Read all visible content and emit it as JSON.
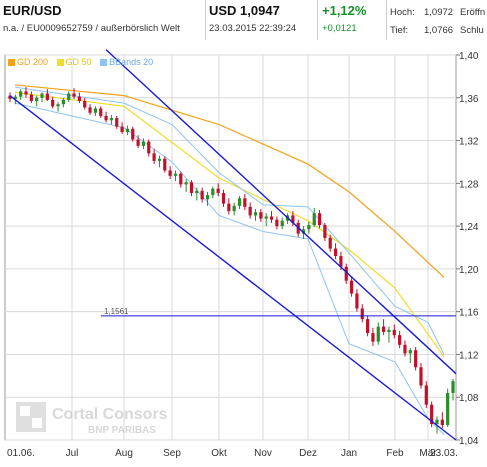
{
  "header": {
    "symbol": "EUR/USD",
    "subtitle": "n.a. / EU0009652759 / außerbörslich Welt",
    "price": "USD 1,0947",
    "timestamp": "23.03.2015 22:39:24",
    "change_pct": "+1,12%",
    "change_abs": "+0,0121",
    "high_label": "Hoch:",
    "high_value": "1,0972",
    "low_label": "Tief:",
    "low_value": "1,0766",
    "open_label_cut": "Eröffn",
    "close_label_cut": "Schlu"
  },
  "legend": [
    {
      "label": "GD 200",
      "color": "#f2a21c"
    },
    {
      "label": "GD 50",
      "color": "#f0dc2a"
    },
    {
      "label": "BBands 20",
      "color": "#8fc4f0"
    }
  ],
  "watermark": {
    "name": "Cortal Consors",
    "sub": "BNP PARIBAS"
  },
  "colors": {
    "channel": "#1a1ad6",
    "up_candle": "#2a8c2a",
    "down_candle": "#c0102a",
    "gd200": "#f2a21c",
    "gd50": "#f0dc2a",
    "bbands": "#8fc4f0",
    "grid": "#d9d9d9"
  },
  "chart_data": {
    "type": "candlestick",
    "y_ticks": [
      "1,40",
      "1,36",
      "1,32",
      "1,28",
      "1,24",
      "1,20",
      "1,16",
      "1,12",
      "1,08",
      "1,04"
    ],
    "ylim": [
      1.04,
      1.4
    ],
    "x_ticks": [
      "01.06.",
      "Jul",
      "Aug",
      "Sep",
      "Okt",
      "Nov",
      "Dez",
      "Jan",
      "Feb",
      "Mär",
      "23.03."
    ],
    "level_line": {
      "label": "1,1561",
      "value": 1.1561
    },
    "channel": {
      "upper": [
        {
          "x": "Jul",
          "y": 1.405
        },
        {
          "x": "23.03.",
          "y": 1.102
        }
      ],
      "lower": [
        {
          "x": "01.06.",
          "y": 1.362
        },
        {
          "x": "23.03.",
          "y": 1.04
        }
      ]
    },
    "series": [
      {
        "name": "GD 200",
        "points": [
          [
            "01.06.",
            1.372
          ],
          [
            "Aug",
            1.362
          ],
          [
            "Okt",
            1.335
          ],
          [
            "Dez",
            1.298
          ],
          [
            "Jan",
            1.272
          ],
          [
            "Feb",
            1.235
          ],
          [
            "23.03.",
            1.192
          ]
        ]
      },
      {
        "name": "GD 50",
        "points": [
          [
            "01.06.",
            1.365
          ],
          [
            "Aug",
            1.352
          ],
          [
            "Okt",
            1.285
          ],
          [
            "Nov",
            1.265
          ],
          [
            "Dez",
            1.245
          ],
          [
            "Jan",
            1.218
          ],
          [
            "Feb",
            1.182
          ],
          [
            "23.03.",
            1.118
          ]
        ]
      },
      {
        "name": "BBands 20",
        "upper": [
          [
            "01.06.",
            1.37
          ],
          [
            "Aug",
            1.355
          ],
          [
            "Sep",
            1.335
          ],
          [
            "Okt",
            1.29
          ],
          [
            "Nov",
            1.26
          ],
          [
            "Dez",
            1.258
          ],
          [
            "Jan",
            1.215
          ],
          [
            "Feb",
            1.165
          ],
          [
            "Mär",
            1.15
          ],
          [
            "23.03.",
            1.12
          ]
        ],
        "lower": [
          [
            "01.06.",
            1.355
          ],
          [
            "Aug",
            1.332
          ],
          [
            "Sep",
            1.3
          ],
          [
            "Okt",
            1.25
          ],
          [
            "Nov",
            1.235
          ],
          [
            "Dez",
            1.228
          ],
          [
            "Jan",
            1.13
          ],
          [
            "Feb",
            1.113
          ],
          [
            "Mär",
            1.06
          ],
          [
            "23.03.",
            1.045
          ]
        ]
      }
    ],
    "candles": [
      [
        1.362,
        1.365,
        1.356,
        1.359
      ],
      [
        1.359,
        1.363,
        1.354,
        1.361
      ],
      [
        1.361,
        1.368,
        1.358,
        1.366
      ],
      [
        1.366,
        1.37,
        1.36,
        1.363
      ],
      [
        1.363,
        1.366,
        1.355,
        1.357
      ],
      [
        1.357,
        1.362,
        1.352,
        1.36
      ],
      [
        1.36,
        1.365,
        1.356,
        1.364
      ],
      [
        1.364,
        1.368,
        1.357,
        1.358
      ],
      [
        1.358,
        1.361,
        1.35,
        1.352
      ],
      [
        1.352,
        1.356,
        1.347,
        1.354
      ],
      [
        1.354,
        1.36,
        1.351,
        1.358
      ],
      [
        1.358,
        1.366,
        1.356,
        1.364
      ],
      [
        1.364,
        1.369,
        1.359,
        1.361
      ],
      [
        1.361,
        1.365,
        1.355,
        1.357
      ],
      [
        1.357,
        1.36,
        1.349,
        1.351
      ],
      [
        1.351,
        1.354,
        1.344,
        1.346
      ],
      [
        1.346,
        1.352,
        1.343,
        1.35
      ],
      [
        1.35,
        1.352,
        1.341,
        1.343
      ],
      [
        1.343,
        1.347,
        1.337,
        1.339
      ],
      [
        1.339,
        1.344,
        1.335,
        1.341
      ],
      [
        1.341,
        1.343,
        1.331,
        1.333
      ],
      [
        1.333,
        1.337,
        1.326,
        1.328
      ],
      [
        1.328,
        1.334,
        1.325,
        1.331
      ],
      [
        1.331,
        1.333,
        1.319,
        1.321
      ],
      [
        1.321,
        1.325,
        1.313,
        1.315
      ],
      [
        1.315,
        1.322,
        1.312,
        1.319
      ],
      [
        1.319,
        1.321,
        1.305,
        1.308
      ],
      [
        1.308,
        1.312,
        1.298,
        1.301
      ],
      [
        1.301,
        1.306,
        1.295,
        1.303
      ],
      [
        1.303,
        1.305,
        1.29,
        1.292
      ],
      [
        1.292,
        1.296,
        1.284,
        1.287
      ],
      [
        1.287,
        1.292,
        1.282,
        1.289
      ],
      [
        1.289,
        1.291,
        1.276,
        1.279
      ],
      [
        1.279,
        1.284,
        1.272,
        1.281
      ],
      [
        1.281,
        1.283,
        1.268,
        1.271
      ],
      [
        1.271,
        1.276,
        1.264,
        1.273
      ],
      [
        1.273,
        1.276,
        1.262,
        1.265
      ],
      [
        1.265,
        1.272,
        1.259,
        1.269
      ],
      [
        1.269,
        1.277,
        1.266,
        1.275
      ],
      [
        1.275,
        1.28,
        1.268,
        1.271
      ],
      [
        1.271,
        1.274,
        1.258,
        1.261
      ],
      [
        1.261,
        1.266,
        1.251,
        1.254
      ],
      [
        1.254,
        1.262,
        1.25,
        1.259
      ],
      [
        1.259,
        1.268,
        1.256,
        1.266
      ],
      [
        1.266,
        1.27,
        1.255,
        1.258
      ],
      [
        1.258,
        1.262,
        1.247,
        1.25
      ],
      [
        1.25,
        1.256,
        1.245,
        1.253
      ],
      [
        1.253,
        1.256,
        1.244,
        1.247
      ],
      [
        1.247,
        1.252,
        1.24,
        1.249
      ],
      [
        1.249,
        1.254,
        1.243,
        1.246
      ],
      [
        1.246,
        1.249,
        1.237,
        1.24
      ],
      [
        1.24,
        1.248,
        1.237,
        1.245
      ],
      [
        1.245,
        1.252,
        1.242,
        1.25
      ],
      [
        1.25,
        1.254,
        1.24,
        1.243
      ],
      [
        1.243,
        1.246,
        1.23,
        1.233
      ],
      [
        1.233,
        1.24,
        1.228,
        1.237
      ],
      [
        1.237,
        1.244,
        1.233,
        1.241
      ],
      [
        1.241,
        1.257,
        1.239,
        1.252
      ],
      [
        1.252,
        1.255,
        1.238,
        1.241
      ],
      [
        1.241,
        1.243,
        1.226,
        1.229
      ],
      [
        1.229,
        1.232,
        1.216,
        1.219
      ],
      [
        1.219,
        1.224,
        1.209,
        1.212
      ],
      [
        1.212,
        1.216,
        1.199,
        1.202
      ],
      [
        1.202,
        1.205,
        1.186,
        1.189
      ],
      [
        1.189,
        1.193,
        1.174,
        1.177
      ],
      [
        1.177,
        1.181,
        1.16,
        1.163
      ],
      [
        1.163,
        1.167,
        1.15,
        1.153
      ],
      [
        1.153,
        1.156,
        1.137,
        1.14
      ],
      [
        1.14,
        1.145,
        1.128,
        1.132
      ],
      [
        1.132,
        1.15,
        1.129,
        1.146
      ],
      [
        1.146,
        1.153,
        1.138,
        1.141
      ],
      [
        1.141,
        1.146,
        1.131,
        1.143
      ],
      [
        1.143,
        1.148,
        1.135,
        1.138
      ],
      [
        1.138,
        1.142,
        1.126,
        1.129
      ],
      [
        1.129,
        1.133,
        1.118,
        1.121
      ],
      [
        1.121,
        1.126,
        1.112,
        1.124
      ],
      [
        1.124,
        1.127,
        1.105,
        1.108
      ],
      [
        1.108,
        1.112,
        1.088,
        1.091
      ],
      [
        1.091,
        1.095,
        1.07,
        1.073
      ],
      [
        1.073,
        1.076,
        1.052,
        1.055
      ],
      [
        1.055,
        1.062,
        1.046,
        1.059
      ],
      [
        1.059,
        1.066,
        1.051,
        1.054
      ],
      [
        1.054,
        1.088,
        1.052,
        1.084
      ],
      [
        1.084,
        1.097,
        1.077,
        1.095
      ]
    ]
  }
}
